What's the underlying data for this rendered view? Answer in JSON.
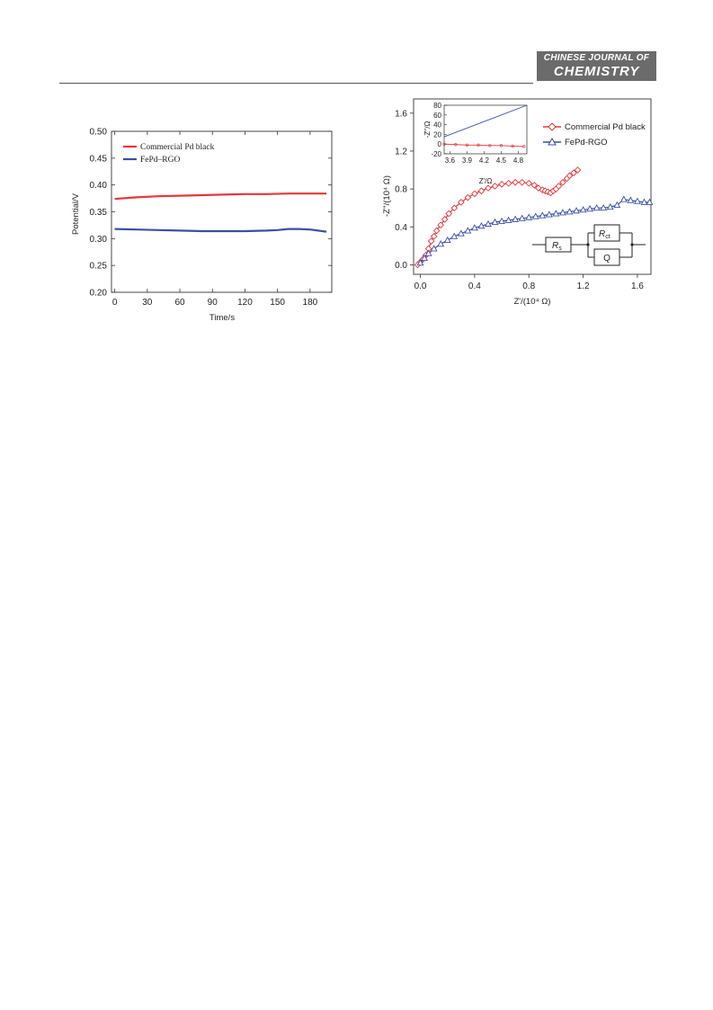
{
  "header": {
    "journal_line1": "CHINESE JOURNAL OF",
    "journal_line2": "CHEMISTRY"
  },
  "chart_data": [
    {
      "type": "line",
      "xlabel": "Time/s",
      "ylabel": "Potential/V",
      "xlim": [
        -3,
        200
      ],
      "ylim": [
        0.2,
        0.5
      ],
      "xticks": [
        "0",
        "30",
        "60",
        "90",
        "120",
        "150",
        "180"
      ],
      "yticks": [
        "0.20",
        "0.25",
        "0.30",
        "0.35",
        "0.40",
        "0.45",
        "0.50"
      ],
      "legend_position": "top-left",
      "series": [
        {
          "name": "Commercial Pd black",
          "color": "#e8363a",
          "x": [
            0,
            20,
            40,
            60,
            80,
            100,
            120,
            140,
            160,
            180,
            195
          ],
          "y": [
            0.374,
            0.377,
            0.379,
            0.38,
            0.381,
            0.382,
            0.383,
            0.383,
            0.384,
            0.384,
            0.384
          ]
        },
        {
          "name": "FePd–RGO",
          "color": "#3b4fa8",
          "x": [
            0,
            20,
            40,
            60,
            80,
            100,
            120,
            140,
            150,
            160,
            170,
            180,
            195
          ],
          "y": [
            0.318,
            0.317,
            0.316,
            0.315,
            0.314,
            0.314,
            0.314,
            0.315,
            0.316,
            0.318,
            0.318,
            0.317,
            0.313
          ]
        }
      ]
    },
    {
      "type": "scatter",
      "xlabel": "Z'/(10⁴ Ω)",
      "ylabel": "-Z''/(10⁴ Ω)",
      "xlim": [
        -0.05,
        1.7
      ],
      "ylim": [
        -0.1,
        1.75
      ],
      "xticks": [
        "0.0",
        "0.4",
        "0.8",
        "1.2",
        "1.6"
      ],
      "yticks": [
        "0.0",
        "0.4",
        "0.8",
        "1.2",
        "1.6"
      ],
      "legend_position": "top-right",
      "series": [
        {
          "name": "Commercial Pd black",
          "color": "#e8363a",
          "marker": "diamond",
          "x": [
            -0.02,
            0.0,
            0.02,
            0.04,
            0.06,
            0.08,
            0.1,
            0.12,
            0.15,
            0.18,
            0.21,
            0.25,
            0.3,
            0.35,
            0.4,
            0.45,
            0.5,
            0.55,
            0.6,
            0.65,
            0.7,
            0.75,
            0.8,
            0.84,
            0.87,
            0.9,
            0.92,
            0.94,
            0.96,
            0.98,
            1.0,
            1.02,
            1.05,
            1.08,
            1.1,
            1.13,
            1.16
          ],
          "y": [
            0.0,
            0.03,
            0.06,
            0.1,
            0.17,
            0.25,
            0.3,
            0.36,
            0.42,
            0.48,
            0.54,
            0.6,
            0.66,
            0.71,
            0.75,
            0.78,
            0.81,
            0.83,
            0.85,
            0.86,
            0.87,
            0.87,
            0.86,
            0.84,
            0.81,
            0.79,
            0.78,
            0.77,
            0.76,
            0.78,
            0.8,
            0.83,
            0.87,
            0.91,
            0.94,
            0.97,
            1.0
          ]
        },
        {
          "name": "FePd-RGO",
          "color": "#3b4fa8",
          "marker": "triangle",
          "x": [
            0.0,
            0.03,
            0.06,
            0.1,
            0.15,
            0.2,
            0.25,
            0.3,
            0.35,
            0.4,
            0.45,
            0.5,
            0.55,
            0.6,
            0.65,
            0.7,
            0.75,
            0.8,
            0.85,
            0.9,
            0.95,
            1.0,
            1.05,
            1.1,
            1.15,
            1.2,
            1.25,
            1.3,
            1.35,
            1.4,
            1.45,
            1.5,
            1.55,
            1.6,
            1.65,
            1.69
          ],
          "y": [
            0.02,
            0.07,
            0.12,
            0.17,
            0.22,
            0.26,
            0.3,
            0.33,
            0.36,
            0.39,
            0.41,
            0.43,
            0.45,
            0.46,
            0.47,
            0.48,
            0.49,
            0.5,
            0.51,
            0.52,
            0.53,
            0.54,
            0.55,
            0.56,
            0.57,
            0.58,
            0.59,
            0.6,
            0.6,
            0.61,
            0.63,
            0.69,
            0.68,
            0.67,
            0.66,
            0.66
          ]
        }
      ],
      "inset": {
        "xlabel": "Z'/Ω",
        "ylabel": "-Z''/Ω",
        "xlim": [
          3.5,
          4.95
        ],
        "ylim": [
          -20,
          80
        ],
        "xticks": [
          "3.6",
          "3.9",
          "4.2",
          "4.5",
          "4.8"
        ],
        "yticks": [
          "-20",
          "0",
          "20",
          "40",
          "60",
          "80"
        ],
        "series": [
          {
            "name": "FePd-RGO",
            "color": "#3b4fa8",
            "x": [
              3.5,
              4.95
            ],
            "y": [
              15,
              80
            ]
          },
          {
            "name": "Commercial Pd black",
            "color": "#e8363a",
            "x": [
              3.5,
              3.7,
              3.9,
              4.1,
              4.3,
              4.5,
              4.7,
              4.9
            ],
            "y": [
              0,
              -1,
              -2,
              -2,
              -3,
              -3,
              -4,
              -5
            ]
          }
        ]
      },
      "circuit": {
        "rs_label": "R",
        "rs_sub": "s",
        "rct_label": "R",
        "rct_sub": "ct",
        "q_label": "Q"
      }
    }
  ]
}
